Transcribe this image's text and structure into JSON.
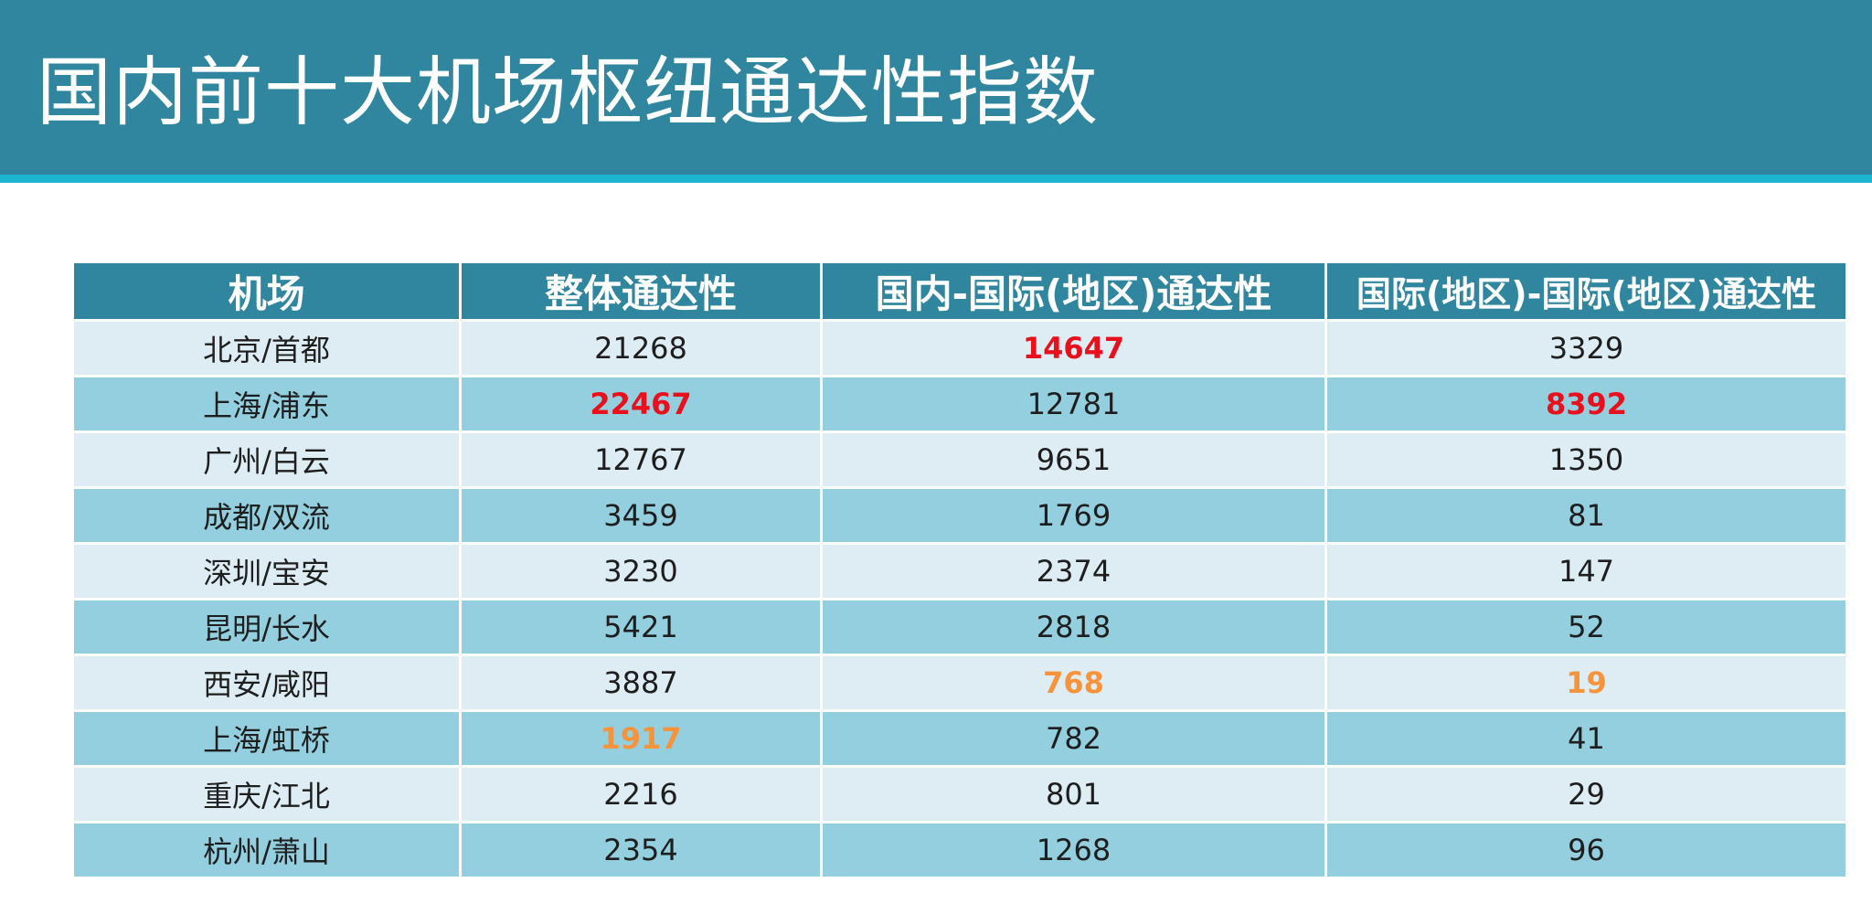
{
  "title": "国内前十大机场枢纽通达性指数",
  "colors": {
    "header_bg": "#2f869e",
    "header_rule": "#1db4cf",
    "row_light": "#ddedf3",
    "row_dark": "#93cfde",
    "highlight_max": "#e8101c",
    "highlight_min": "#f7943b"
  },
  "table": {
    "headers": [
      "机场",
      "整体通达性",
      "国内-国际(地区)通达性",
      "国际(地区)-国际(地区)通达性"
    ],
    "rows": [
      [
        "北京/首都",
        "21268",
        "14647",
        "3329"
      ],
      [
        "上海/浦东",
        "22467",
        "12781",
        "8392"
      ],
      [
        "广州/白云",
        "12767",
        "9651",
        "1350"
      ],
      [
        "成都/双流",
        "3459",
        "1769",
        "81"
      ],
      [
        "深圳/宝安",
        "3230",
        "2374",
        "147"
      ],
      [
        "昆明/长水",
        "5421",
        "2818",
        "52"
      ],
      [
        "西安/咸阳",
        "3887",
        "768",
        "19"
      ],
      [
        "上海/虹桥",
        "1917",
        "782",
        "41"
      ],
      [
        "重庆/江北",
        "2216",
        "801",
        "29"
      ],
      [
        "杭州/萧山",
        "2354",
        "1268",
        "96"
      ]
    ]
  }
}
